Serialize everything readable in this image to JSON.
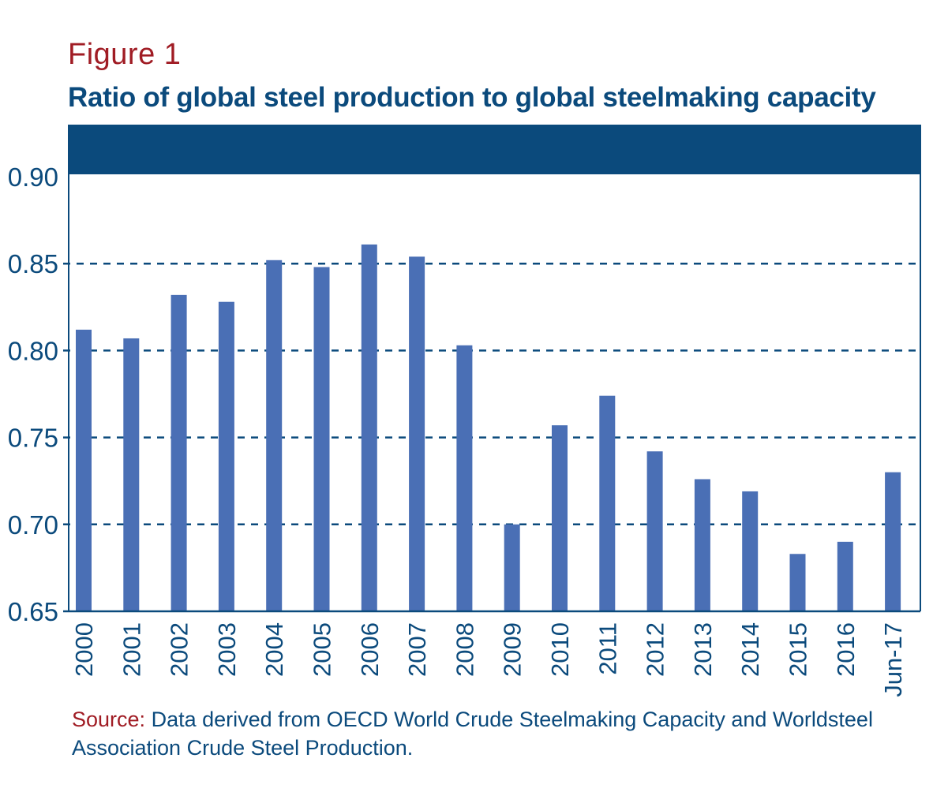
{
  "figure_label": "Figure 1",
  "source": {
    "label": "Source:",
    "text": " Data derived from OECD World Crude Steelmaking Capacity and Worldsteel Association Crude Steel Production."
  },
  "colors": {
    "bar": "#4a6fb5",
    "axis": "#0b4a7c",
    "header_band": "#0b4a7c",
    "figure_label": "#a01c24"
  },
  "chart_data": {
    "type": "bar",
    "title": "Ratio of global steel production to global steelmaking capacity",
    "xlabel": "",
    "ylabel": "",
    "categories": [
      "2000",
      "2001",
      "2002",
      "2003",
      "2004",
      "2005",
      "2006",
      "2007",
      "2008",
      "2009",
      "2010",
      "2011",
      "2012",
      "2013",
      "2014",
      "2015",
      "2016",
      "Jun-17"
    ],
    "values": [
      0.812,
      0.807,
      0.832,
      0.828,
      0.852,
      0.848,
      0.861,
      0.854,
      0.803,
      0.7,
      0.757,
      0.774,
      0.742,
      0.726,
      0.719,
      0.683,
      0.69,
      0.73
    ],
    "ylim": [
      0.65,
      0.9
    ],
    "yticks": [
      "0.65",
      "0.70",
      "0.75",
      "0.80",
      "0.85",
      "0.90"
    ],
    "gridlines": "dashed horizontal",
    "legend": "none"
  }
}
